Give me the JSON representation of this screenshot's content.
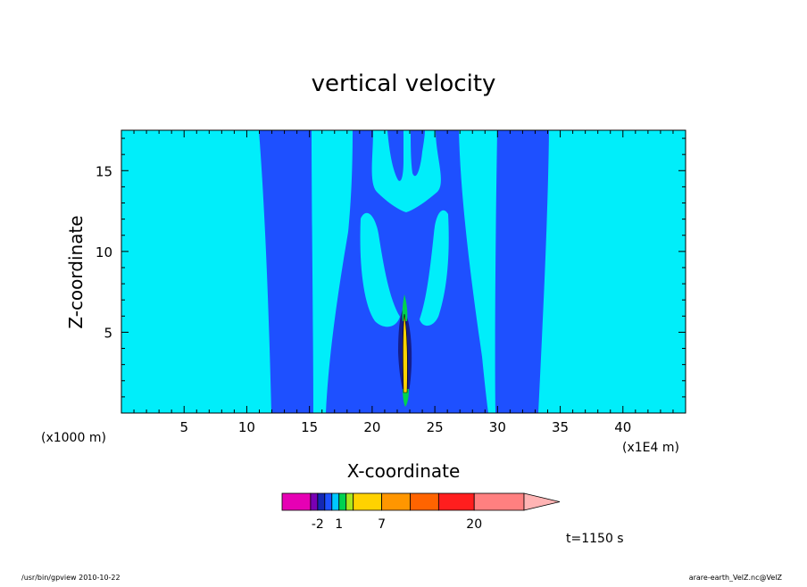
{
  "chart_data": {
    "type": "heatmap",
    "title": "vertical velocity",
    "xlabel": "X-coordinate",
    "ylabel": "Z-coordinate",
    "xlim": [
      0,
      45
    ],
    "ylim": [
      0,
      17.5
    ],
    "x_ticks": [
      {
        "value": 5,
        "label": "5"
      },
      {
        "value": 10,
        "label": "10"
      },
      {
        "value": 15,
        "label": "15"
      },
      {
        "value": 20,
        "label": "20"
      },
      {
        "value": 25,
        "label": "25"
      },
      {
        "value": 30,
        "label": "30"
      },
      {
        "value": 35,
        "label": "35"
      },
      {
        "value": 40,
        "label": "40"
      }
    ],
    "y_ticks": [
      {
        "value": 5,
        "label": "5"
      },
      {
        "value": 10,
        "label": "10"
      },
      {
        "value": 15,
        "label": "15"
      }
    ],
    "x_scale_note_left": "(x1000 m)",
    "x_scale_note_right": "(x1E4 m)",
    "time_label": "t=1150 s",
    "colorbar": {
      "segments": [
        {
          "color": "#e600b4",
          "weight": 4
        },
        {
          "color": "#7800b4",
          "weight": 1
        },
        {
          "color": "#1428b4",
          "weight": 1
        },
        {
          "color": "#1e50ff",
          "weight": 1
        },
        {
          "color": "#00c8ff",
          "weight": 1
        },
        {
          "color": "#00d250",
          "weight": 1
        },
        {
          "color": "#aae61e",
          "weight": 1
        },
        {
          "color": "#ffd200",
          "weight": 4
        },
        {
          "color": "#ff9600",
          "weight": 4
        },
        {
          "color": "#ff6400",
          "weight": 4
        },
        {
          "color": "#ff1e1e",
          "weight": 5
        },
        {
          "color": "#ff8080",
          "weight": 7
        }
      ],
      "extend_color": "#ffb4b4",
      "labels": [
        {
          "text": "-2",
          "after_segment": 1
        },
        {
          "text": "1",
          "after_segment": 4
        },
        {
          "text": "7",
          "after_segment": 7
        },
        {
          "text": "20",
          "after_segment": 10
        }
      ]
    },
    "regions": [
      {
        "color": "#00eefa",
        "kind": "background"
      },
      {
        "color": "#1e50ff",
        "kind": "downdraft-band-left",
        "x_top": [
          11.0,
          15.0
        ],
        "x_bottom": [
          11.8,
          16.0
        ]
      },
      {
        "color": "#1e50ff",
        "kind": "central-envelope"
      },
      {
        "color": "#1e50ff",
        "kind": "downdraft-band-right",
        "x_top": [
          30.0,
          34.0
        ],
        "x_bottom": [
          29.5,
          33.3
        ]
      },
      {
        "color": "#141e8c",
        "kind": "core-negative"
      },
      {
        "color": "#ffd200",
        "kind": "core-positive"
      }
    ]
  },
  "footer": {
    "left": "/usr/bin/gpview   2010-10-22",
    "right": "arare-earth_VelZ.nc@VelZ"
  }
}
